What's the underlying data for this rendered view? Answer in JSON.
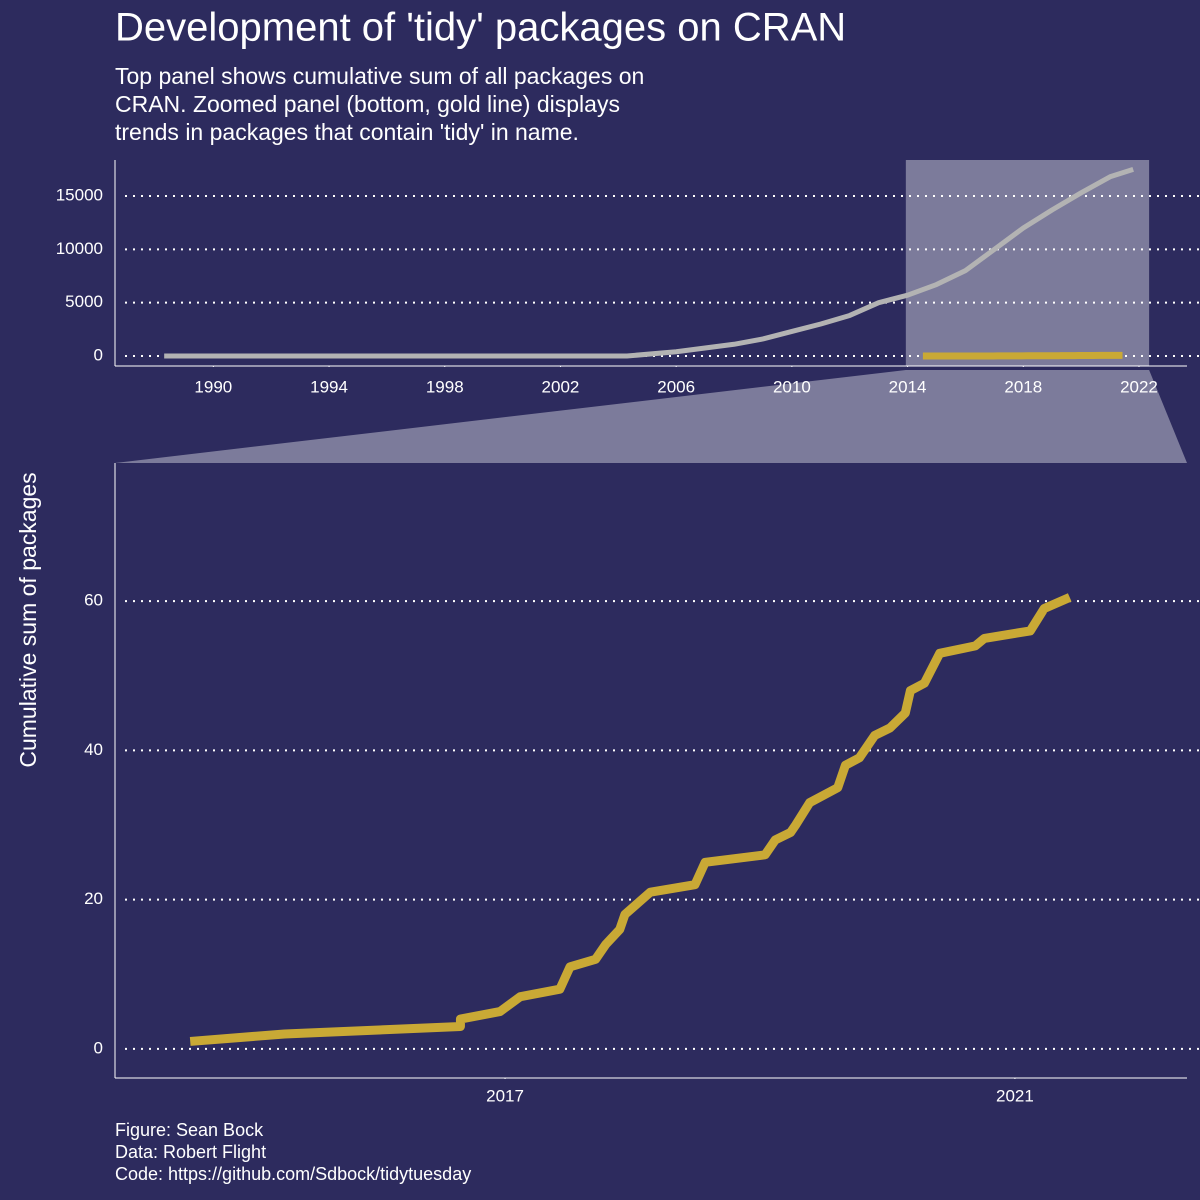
{
  "chart_data": [
    {
      "type": "line",
      "title": "Development of 'tidy' packages on CRAN",
      "subtitle": [
        "Top panel shows cumulative sum of all packages on",
        "CRAN. Zoomed panel (bottom, gold line) displays",
        "trends in packages that contain 'tidy' in name."
      ],
      "xlim": [
        1986.6,
        2023.66
      ],
      "ylim": [
        -937,
        18375
      ],
      "xticks": [
        1990,
        1994,
        1998,
        2002,
        2006,
        2010,
        2014,
        2018,
        2022
      ],
      "yticks": [
        0,
        5000,
        10000,
        15000
      ],
      "grid": true,
      "series": [
        {
          "color": "#b3b3b3",
          "width": 5,
          "x": [
            1988.3,
            2004.3,
            2006,
            2008,
            2009,
            2010,
            2011,
            2012,
            2013,
            2014,
            2015,
            2016,
            2017,
            2018,
            2019,
            2020,
            2021,
            2021.8
          ],
          "values": [
            0,
            0,
            400,
            1100,
            1600,
            2300,
            3000,
            3800,
            5000,
            5700,
            6700,
            8000,
            10000,
            12000,
            13700,
            15300,
            16800,
            17500
          ]
        },
        {
          "color": "#c9a935",
          "width": 7,
          "x": [
            2014.53,
            2015.27,
            2016.65,
            2016.65,
            2016.96,
            2017.12,
            2017.43,
            2017.51,
            2017.71,
            2017.79,
            2017.9,
            2017.94,
            2018.14,
            2018.49,
            2018.57,
            2019.04,
            2019.12,
            2019.24,
            2019.28,
            2019.39,
            2019.61,
            2019.67,
            2019.78,
            2019.9,
            2020.02,
            2020.14,
            2020.18,
            2020.29,
            2020.41,
            2020.69,
            2020.76,
            2021.12,
            2021.23,
            2021.43
          ],
          "values": [
            1,
            2,
            3,
            4,
            5,
            7,
            8,
            11,
            12,
            14,
            16,
            18,
            21,
            22,
            25,
            26,
            28,
            29,
            30,
            33,
            35,
            38,
            39,
            42,
            43,
            45,
            48,
            49,
            53,
            54,
            55,
            56,
            59,
            60.5
          ]
        }
      ]
    },
    {
      "type": "line",
      "ylabel": "Cumulative sum of packages",
      "caption": [
        "Figure: Sean Bock",
        "Data: Robert Flight",
        "Code: https://github.com/Sdbock/tidytuesday"
      ],
      "xlim": [
        2013.94,
        2022.35
      ],
      "ylim": [
        -3.9,
        78.5
      ],
      "xticks": [
        2017,
        2021
      ],
      "yticks": [
        0,
        20,
        40,
        60
      ],
      "grid": true,
      "series": [
        {
          "color": "#c9a935",
          "width": 9,
          "x": [
            2014.53,
            2015.27,
            2016.65,
            2016.65,
            2016.96,
            2017.12,
            2017.43,
            2017.51,
            2017.71,
            2017.79,
            2017.9,
            2017.94,
            2018.14,
            2018.49,
            2018.57,
            2019.04,
            2019.12,
            2019.24,
            2019.28,
            2019.39,
            2019.61,
            2019.67,
            2019.78,
            2019.9,
            2020.02,
            2020.14,
            2020.18,
            2020.29,
            2020.41,
            2020.69,
            2020.76,
            2021.12,
            2021.23,
            2021.43
          ],
          "values": [
            1,
            2,
            3,
            4,
            5,
            7,
            8,
            11,
            12,
            14,
            16,
            18,
            21,
            22,
            25,
            26,
            28,
            29,
            30,
            33,
            35,
            38,
            39,
            42,
            43,
            45,
            48,
            49,
            53,
            54,
            55,
            56,
            59,
            60.5
          ]
        }
      ]
    }
  ]
}
